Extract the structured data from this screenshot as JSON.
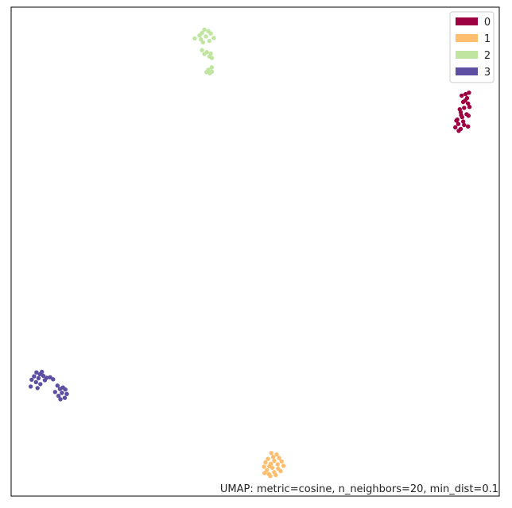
{
  "chart_data": {
    "type": "scatter",
    "title": "",
    "xlabel": "",
    "ylabel": "",
    "xlim": [
      0,
      100
    ],
    "ylim": [
      0,
      100
    ],
    "grid": false,
    "axis_ticks": false,
    "legend_position": "top-right",
    "annotation": "UMAP: metric=cosine, n_neighbors=20, min_dist=0.1",
    "series": [
      {
        "name": "0",
        "color": "#9e0142",
        "points": [
          [
            93.1,
            82.2
          ],
          [
            93.8,
            82.5
          ],
          [
            92.3,
            81.9
          ],
          [
            93.4,
            81.4
          ],
          [
            92.6,
            80.6
          ],
          [
            93.6,
            80.3
          ],
          [
            92.8,
            79.4
          ],
          [
            91.9,
            79.1
          ],
          [
            92.1,
            78.5
          ],
          [
            93.3,
            78.1
          ],
          [
            92.4,
            77.5
          ],
          [
            93.7,
            77.8
          ],
          [
            91.4,
            77.0
          ],
          [
            92.6,
            76.6
          ],
          [
            91.6,
            76.1
          ],
          [
            92.8,
            75.9
          ],
          [
            91.0,
            75.4
          ],
          [
            92.1,
            75.1
          ],
          [
            93.6,
            75.6
          ],
          [
            91.7,
            74.7
          ],
          [
            91.2,
            76.8
          ],
          [
            93.9,
            79.6
          ],
          [
            92.2,
            77.9
          ],
          [
            93.0,
            80.9
          ]
        ]
      },
      {
        "name": "1",
        "color": "#fdbf6f",
        "points": [
          [
            53.3,
            8.8
          ],
          [
            54.4,
            8.5
          ],
          [
            53.7,
            8.0
          ],
          [
            54.9,
            7.8
          ],
          [
            52.6,
            7.6
          ],
          [
            53.9,
            7.2
          ],
          [
            55.4,
            7.1
          ],
          [
            52.1,
            6.9
          ],
          [
            53.2,
            6.6
          ],
          [
            54.6,
            6.5
          ],
          [
            55.8,
            6.2
          ],
          [
            51.8,
            6.0
          ],
          [
            53.5,
            5.8
          ],
          [
            54.7,
            5.6
          ],
          [
            52.4,
            5.3
          ],
          [
            53.9,
            4.9
          ],
          [
            52.8,
            4.5
          ],
          [
            54.2,
            4.3
          ],
          [
            51.9,
            4.7
          ],
          [
            53.1,
            4.1
          ],
          [
            55.2,
            5.1
          ],
          [
            52.9,
            6.1
          ]
        ]
      },
      {
        "name": "2",
        "color": "#bfe5a0",
        "points": [
          [
            39.6,
            95.4
          ],
          [
            40.4,
            95.1
          ],
          [
            39.1,
            94.7
          ],
          [
            40.9,
            94.6
          ],
          [
            38.6,
            94.2
          ],
          [
            39.9,
            94.0
          ],
          [
            41.5,
            93.7
          ],
          [
            37.6,
            93.6
          ],
          [
            38.9,
            93.4
          ],
          [
            40.6,
            93.1
          ],
          [
            39.3,
            92.8
          ],
          [
            39.1,
            91.2
          ],
          [
            40.1,
            90.8
          ],
          [
            39.6,
            90.4
          ],
          [
            40.9,
            90.5
          ],
          [
            40.6,
            89.9
          ],
          [
            41.1,
            89.6
          ],
          [
            41.1,
            87.7
          ],
          [
            40.4,
            87.2
          ],
          [
            41.1,
            86.8
          ],
          [
            40.0,
            86.7
          ],
          [
            40.7,
            86.5
          ]
        ]
      },
      {
        "name": "3",
        "color": "#5e4fa2",
        "points": [
          [
            5.2,
            25.3
          ],
          [
            6.3,
            25.4
          ],
          [
            5.9,
            24.9
          ],
          [
            4.7,
            24.5
          ],
          [
            6.6,
            24.6
          ],
          [
            7.3,
            24.2
          ],
          [
            5.6,
            24.1
          ],
          [
            8.0,
            24.3
          ],
          [
            4.2,
            23.8
          ],
          [
            6.9,
            23.7
          ],
          [
            8.6,
            23.9
          ],
          [
            5.1,
            23.3
          ],
          [
            6.0,
            22.9
          ],
          [
            4.0,
            22.4
          ],
          [
            5.4,
            22.1
          ],
          [
            9.5,
            22.6
          ],
          [
            10.6,
            22.2
          ],
          [
            10.0,
            21.9
          ],
          [
            11.1,
            21.8
          ],
          [
            9.0,
            21.3
          ],
          [
            10.4,
            21.1
          ],
          [
            11.4,
            20.9
          ],
          [
            9.7,
            20.5
          ],
          [
            11.0,
            20.1
          ],
          [
            10.1,
            19.8
          ]
        ]
      }
    ]
  }
}
